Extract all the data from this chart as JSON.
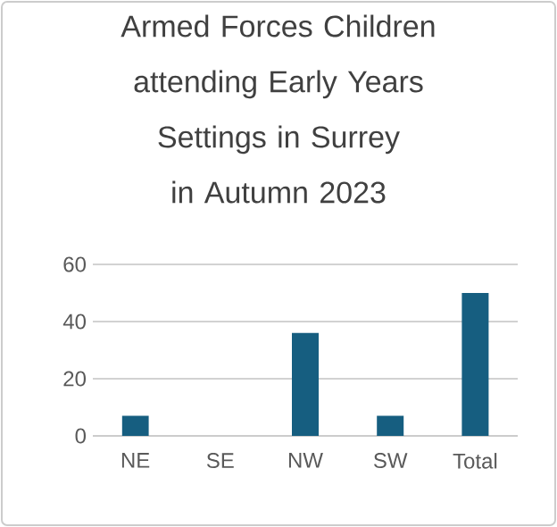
{
  "chart_data": {
    "type": "bar",
    "title": "Armed Forces Children attending Early Years Settings in Surrey in Autumn 2023",
    "categories": [
      "NE",
      "SE",
      "NW",
      "SW",
      "Total"
    ],
    "values": [
      7,
      0,
      36,
      7,
      50
    ],
    "color": "#165e80",
    "ylim": [
      0,
      60
    ],
    "yticks": [
      0,
      20,
      40,
      60
    ],
    "grid": "y"
  }
}
